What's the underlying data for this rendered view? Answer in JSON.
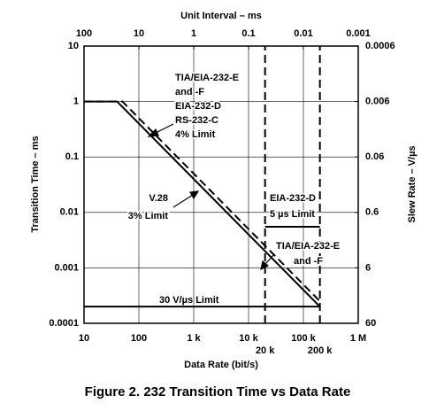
{
  "chart_data": {
    "type": "line",
    "caption": "Figure 2.  232 Transition Time vs Data Rate",
    "xlabel": "Data Rate (bit/s)",
    "ylabel": "Transition Time – ms",
    "x2label": "Unit Interval – ms",
    "y2label": "Slew Rate – V/µs",
    "xscale": "log",
    "yscale": "log",
    "grid": true,
    "xlim": [
      10,
      1000000
    ],
    "xticks": [
      10,
      100,
      {
        "value": 1000,
        "label": "1 k"
      },
      {
        "value": 10000,
        "label": "10 k"
      },
      {
        "value": 20000,
        "label": "20 k"
      },
      {
        "value": 100000,
        "label": "100 k"
      },
      {
        "value": 200000,
        "label": "200 k"
      },
      {
        "value": 1000000,
        "label": "1 M"
      }
    ],
    "ylim": [
      0.0001,
      10
    ],
    "yticks": [
      0.0001,
      0.001,
      0.01,
      0.1,
      1,
      10
    ],
    "x2lim": [
      100,
      0.001
    ],
    "x2ticks": [
      100,
      10,
      1,
      0.1,
      0.01,
      0.001
    ],
    "y2lim": [
      60,
      0.0006
    ],
    "y2ticks": [
      60,
      6,
      0.6,
      0.06,
      0.006,
      0.0006
    ],
    "series": [
      {
        "color": "#000000",
        "dash": false,
        "x": [
          10,
          40,
          200000
        ],
        "values": [
          1,
          1,
          0.0002
        ]
      },
      {
        "color": "#000000",
        "dash": true,
        "x": [
          10,
          50,
          200000
        ],
        "values": [
          1,
          1,
          0.00025
        ]
      },
      {
        "color": "#000000",
        "dash": false,
        "x": [
          10,
          200000
        ],
        "values": [
          0.0002,
          0.0002
        ]
      },
      {
        "color": "#000000",
        "dash": false,
        "x": [
          20000,
          200000
        ],
        "values": [
          0.0055,
          0.0055
        ]
      },
      {
        "color": "#000000",
        "dash": true,
        "x": [
          20000,
          20000
        ],
        "values": [
          0.0001,
          10
        ]
      },
      {
        "color": "#000000",
        "dash": true,
        "x": [
          200000,
          200000
        ],
        "values": [
          0.0001,
          10
        ]
      }
    ],
    "annotations": [
      [
        "TIA/EIA-232-E",
        "and -F",
        "EIA-232-D",
        "RS-232-C",
        "4% Limit"
      ],
      [
        "V.28",
        "3% Limit"
      ],
      [
        "EIA-232-D",
        "5 µs Limit"
      ],
      [
        "TIA/EIA-232-E",
        "and -F"
      ],
      [
        "30 V/µs Limit"
      ]
    ]
  }
}
